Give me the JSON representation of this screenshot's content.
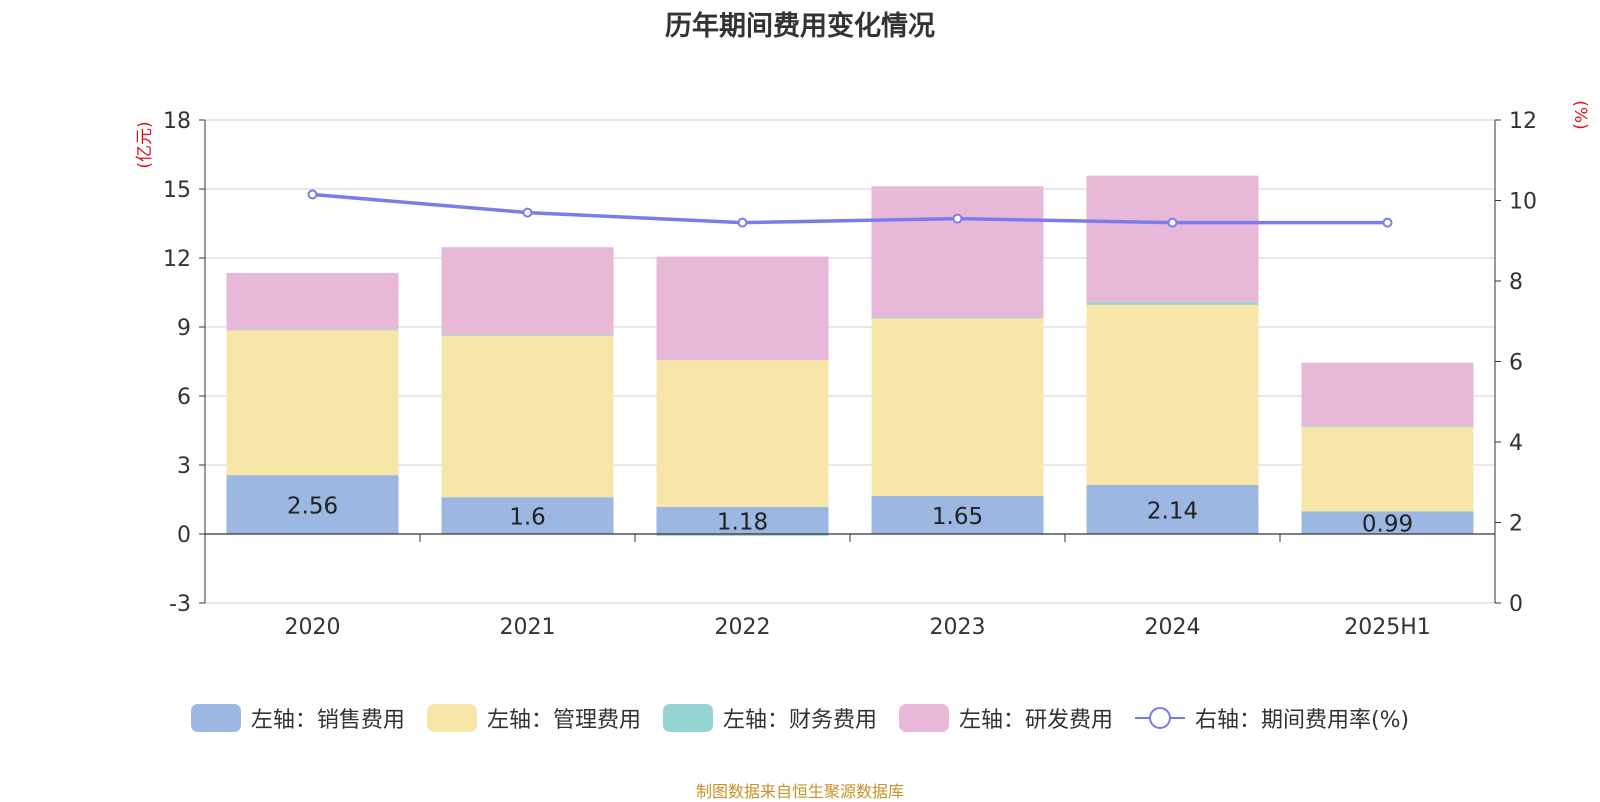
{
  "chart_data": {
    "type": "bar",
    "title": "历年期间费用变化情况",
    "categories": [
      "2020",
      "2021",
      "2022",
      "2023",
      "2024",
      "2025H1"
    ],
    "stacked": true,
    "y_left": {
      "label": "(亿元)",
      "ticks": [
        "-3",
        "0",
        "3",
        "6",
        "9",
        "12",
        "15",
        "18"
      ],
      "range": [
        -3,
        18
      ]
    },
    "y_right": {
      "label": "(%)",
      "ticks": [
        "0",
        "2",
        "4",
        "6",
        "8",
        "10",
        "12"
      ],
      "range": [
        0,
        12
      ]
    },
    "grid": true,
    "legend_position": "bottom",
    "series": [
      {
        "name": "左轴：销售费用",
        "axis": "left",
        "type": "bar",
        "color": "#9bb7e2",
        "values": [
          2.56,
          1.6,
          1.18,
          1.65,
          2.14,
          0.99
        ],
        "labels": [
          "2.56",
          "1.6",
          "1.18",
          "1.65",
          "2.14",
          "0.99"
        ]
      },
      {
        "name": "左轴：管理费用",
        "axis": "left",
        "type": "bar",
        "color": "#f8e6a8",
        "values": [
          6.32,
          7.05,
          6.38,
          7.75,
          7.82,
          3.68
        ]
      },
      {
        "name": "左轴：财务费用",
        "axis": "left",
        "type": "bar",
        "color": "#96d4d3",
        "values": [
          0.02,
          0.02,
          -0.08,
          0.02,
          0.12,
          0.03
        ]
      },
      {
        "name": "左轴：研发费用",
        "axis": "left",
        "type": "bar",
        "color": "#e8b8d8",
        "values": [
          2.45,
          3.8,
          4.5,
          5.7,
          5.5,
          2.75
        ]
      },
      {
        "name": "右轴：期间费用率(%)",
        "axis": "right",
        "type": "line",
        "color": "#7a7de8",
        "values": [
          10.15,
          9.7,
          9.45,
          9.55,
          9.45,
          9.45
        ]
      }
    ]
  },
  "source_note": "制图数据来自恒生聚源数据库"
}
